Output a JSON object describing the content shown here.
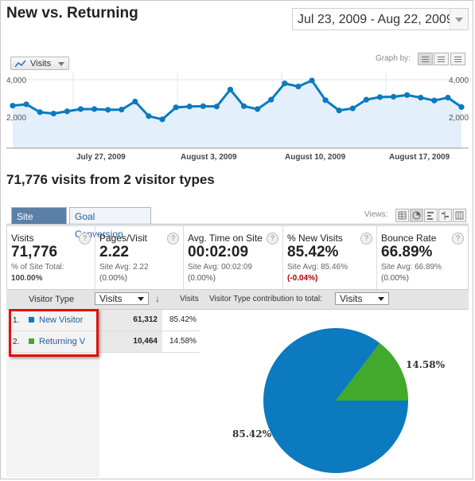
{
  "header": {
    "title": "New vs. Returning",
    "date_range": "Jul 23, 2009 - Aug 22, 2009"
  },
  "graph_controls": {
    "metric_selector": "Visits",
    "graph_by_label": "Graph by:",
    "graph_by_options": [
      "day",
      "week",
      "month"
    ],
    "graph_by_active": "day"
  },
  "chart_data": {
    "type": "line",
    "title": "",
    "series": [
      {
        "name": "Visits",
        "values": [
          2480,
          2560,
          2100,
          2020,
          2150,
          2280,
          2280,
          2240,
          2250,
          2720,
          1870,
          1680,
          2380,
          2430,
          2450,
          2430,
          3420,
          2450,
          2280,
          2830,
          3780,
          3600,
          3950,
          2800,
          2200,
          2320,
          2830,
          2980,
          3000,
          3100,
          2950,
          2780,
          2950,
          2400
        ]
      }
    ],
    "x_tick_labels": [
      "July 27, 2009",
      "August 3, 2009",
      "August 10, 2009",
      "August 17, 2009"
    ],
    "y_tick_labels": [
      "4,000",
      "2,000"
    ],
    "ylim": [
      0,
      4000
    ],
    "grid": true,
    "line_color": "#0b7abf",
    "fill_color": "#e3f0fb"
  },
  "summary": "71,776 visits from 2 visitor types",
  "tabs": [
    {
      "label": "Site Usage",
      "active": true
    },
    {
      "label": "Goal Conversion",
      "active": false
    }
  ],
  "views_label": "Views:",
  "view_options": [
    "table",
    "pie",
    "performance",
    "comparison",
    "pivot"
  ],
  "view_active": "pie",
  "scorecard": [
    {
      "name": "Visits",
      "value": "71,776",
      "sub1": "% of Site Total:",
      "sub2": "100.00%"
    },
    {
      "name": "Pages/Visit",
      "value": "2.22",
      "sub1": "Site Avg: 2.22",
      "sub2": "(0.00%)"
    },
    {
      "name": "Avg. Time on Site",
      "value": "00:02:09",
      "sub1": "Site Avg: 00:02:09",
      "sub2": "(0.00%)"
    },
    {
      "name": "% New Visits",
      "value": "85.42%",
      "sub1": "Site Avg: 85.46%",
      "sub2": "(-0.04%)"
    },
    {
      "name": "Bounce Rate",
      "value": "66.89%",
      "sub1": "Site Avg: 66.89%",
      "sub2": "(0.00%)"
    }
  ],
  "table": {
    "col_visitor_type": "Visitor Type",
    "metric_select": "Visits",
    "col_visits": "Visits",
    "contribution_label": "Visitor Type contribution to total:",
    "contribution_select": "Visits",
    "rows": [
      {
        "num": "1.",
        "label": "New Visitor",
        "visits": "61,312",
        "pct": "85.42%",
        "color": "#0b7abf"
      },
      {
        "num": "2.",
        "label": "Returning V",
        "visits": "10,464",
        "pct": "14.58%",
        "color": "#41a92c"
      }
    ]
  },
  "pie": {
    "slices": [
      {
        "label": "85.42%",
        "value": 85.42,
        "color": "#0b7abf"
      },
      {
        "label": "14.58%",
        "value": 14.58,
        "color": "#41a92c"
      }
    ]
  }
}
